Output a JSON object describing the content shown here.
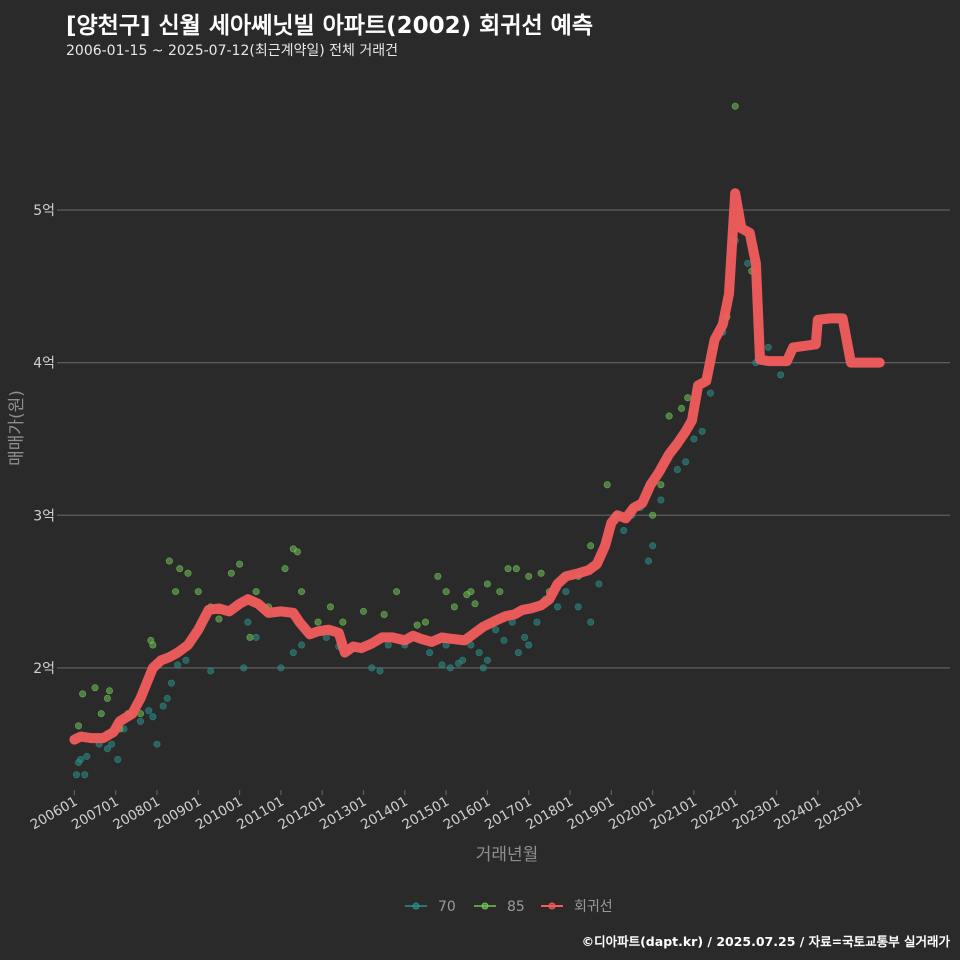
{
  "title": "[양천구] 신월 세아쎄닛빌 아파트(2002) 회귀선 예측",
  "subtitle": "2006-01-15 ~ 2025-07-12(최근계약일) 전체 거래건",
  "caption": "©디아파트(dapt.kr) / 2025.07.25 / 자료=국토교통부 실거래가",
  "colors": {
    "background": "#2b2a2b",
    "grid": "#5f5e60",
    "s70": "#2a8f8a",
    "s85": "#6fc356",
    "regression": "#f25c5c",
    "axis_text": "#d0d0d0",
    "axis_title": "#8f8f8f"
  },
  "chart_data": {
    "type": "scatter",
    "xlabel": "거래년월",
    "ylabel": "매매가(원)",
    "x_unit": "year",
    "xlim": [
      2005.7,
      2027.2
    ],
    "ylim": [
      1.2,
      5.95
    ],
    "x_ticks": [
      {
        "value": 2006.0,
        "label": "200601"
      },
      {
        "value": 2007.0,
        "label": "200701"
      },
      {
        "value": 2008.0,
        "label": "200801"
      },
      {
        "value": 2009.0,
        "label": "200901"
      },
      {
        "value": 2010.0,
        "label": "201001"
      },
      {
        "value": 2011.0,
        "label": "201101"
      },
      {
        "value": 2012.0,
        "label": "201201"
      },
      {
        "value": 2013.0,
        "label": "201301"
      },
      {
        "value": 2014.0,
        "label": "201401"
      },
      {
        "value": 2015.0,
        "label": "201501"
      },
      {
        "value": 2016.0,
        "label": "201601"
      },
      {
        "value": 2017.0,
        "label": "201701"
      },
      {
        "value": 2018.0,
        "label": "201801"
      },
      {
        "value": 2019.0,
        "label": "201901"
      },
      {
        "value": 2020.0,
        "label": "202001"
      },
      {
        "value": 2021.0,
        "label": "202101"
      },
      {
        "value": 2022.0,
        "label": "202201"
      },
      {
        "value": 2023.0,
        "label": "202301"
      },
      {
        "value": 2024.0,
        "label": "202401"
      },
      {
        "value": 2025.0,
        "label": "202501"
      }
    ],
    "y_ticks": [
      {
        "value": 2,
        "label": "2억"
      },
      {
        "value": 3,
        "label": "3억"
      },
      {
        "value": 4,
        "label": "4억"
      },
      {
        "value": 5,
        "label": "5억"
      }
    ],
    "legend": {
      "position": "bottom",
      "items": [
        {
          "key": "s70",
          "label": "70"
        },
        {
          "key": "s85",
          "label": "85"
        },
        {
          "key": "regression",
          "label": "회귀선"
        }
      ]
    },
    "series": [
      {
        "name": "70",
        "type": "scatter",
        "color_key": "s70",
        "points": [
          [
            2006.05,
            1.3
          ],
          [
            2006.1,
            1.38
          ],
          [
            2006.15,
            1.4
          ],
          [
            2006.25,
            1.3
          ],
          [
            2006.3,
            1.42
          ],
          [
            2006.6,
            1.5
          ],
          [
            2006.8,
            1.47
          ],
          [
            2006.9,
            1.5
          ],
          [
            2007.05,
            1.4
          ],
          [
            2007.2,
            1.6
          ],
          [
            2007.4,
            1.7
          ],
          [
            2007.6,
            1.65
          ],
          [
            2007.8,
            1.72
          ],
          [
            2007.9,
            1.68
          ],
          [
            2008.0,
            1.5
          ],
          [
            2008.15,
            1.75
          ],
          [
            2008.25,
            1.8
          ],
          [
            2008.35,
            1.9
          ],
          [
            2008.5,
            2.02
          ],
          [
            2008.7,
            2.05
          ],
          [
            2009.1,
            2.3
          ],
          [
            2009.3,
            1.98
          ],
          [
            2010.1,
            2.0
          ],
          [
            2010.2,
            2.3
          ],
          [
            2010.4,
            2.2
          ],
          [
            2011.0,
            2.0
          ],
          [
            2011.3,
            2.1
          ],
          [
            2011.5,
            2.15
          ],
          [
            2012.1,
            2.2
          ],
          [
            2012.4,
            2.14
          ],
          [
            2012.7,
            2.12
          ],
          [
            2013.2,
            2.0
          ],
          [
            2013.4,
            1.98
          ],
          [
            2013.6,
            2.15
          ],
          [
            2014.0,
            2.15
          ],
          [
            2014.3,
            2.2
          ],
          [
            2014.6,
            2.1
          ],
          [
            2014.9,
            2.02
          ],
          [
            2015.0,
            2.15
          ],
          [
            2015.1,
            2.0
          ],
          [
            2015.3,
            2.03
          ],
          [
            2015.4,
            2.05
          ],
          [
            2015.6,
            2.15
          ],
          [
            2015.8,
            2.1
          ],
          [
            2015.9,
            2.0
          ],
          [
            2016.0,
            2.05
          ],
          [
            2016.2,
            2.25
          ],
          [
            2016.4,
            2.18
          ],
          [
            2016.6,
            2.3
          ],
          [
            2016.75,
            2.1
          ],
          [
            2016.9,
            2.2
          ],
          [
            2017.0,
            2.15
          ],
          [
            2017.2,
            2.3
          ],
          [
            2017.4,
            2.45
          ],
          [
            2017.7,
            2.4
          ],
          [
            2017.9,
            2.5
          ],
          [
            2018.2,
            2.4
          ],
          [
            2018.5,
            2.3
          ],
          [
            2018.7,
            2.55
          ],
          [
            2019.3,
            2.9
          ],
          [
            2019.5,
            3.0
          ],
          [
            2019.7,
            3.05
          ],
          [
            2019.9,
            2.7
          ],
          [
            2020.0,
            2.8
          ],
          [
            2020.2,
            3.1
          ],
          [
            2020.6,
            3.3
          ],
          [
            2020.8,
            3.35
          ],
          [
            2021.0,
            3.5
          ],
          [
            2021.2,
            3.55
          ],
          [
            2021.4,
            3.8
          ],
          [
            2021.7,
            4.2
          ],
          [
            2022.0,
            4.8
          ],
          [
            2022.3,
            4.65
          ],
          [
            2022.5,
            4.0
          ],
          [
            2022.8,
            4.1
          ],
          [
            2023.1,
            3.92
          ]
        ]
      },
      {
        "name": "85",
        "type": "scatter",
        "color_key": "s85",
        "points": [
          [
            2006.1,
            1.62
          ],
          [
            2006.2,
            1.83
          ],
          [
            2006.5,
            1.87
          ],
          [
            2006.65,
            1.7
          ],
          [
            2006.8,
            1.8
          ],
          [
            2006.85,
            1.85
          ],
          [
            2007.1,
            1.6
          ],
          [
            2007.3,
            1.7
          ],
          [
            2007.6,
            1.7
          ],
          [
            2007.85,
            2.18
          ],
          [
            2007.9,
            2.15
          ],
          [
            2008.3,
            2.7
          ],
          [
            2008.45,
            2.5
          ],
          [
            2008.55,
            2.65
          ],
          [
            2008.75,
            2.62
          ],
          [
            2009.0,
            2.5
          ],
          [
            2009.3,
            2.4
          ],
          [
            2009.5,
            2.32
          ],
          [
            2009.8,
            2.62
          ],
          [
            2010.0,
            2.68
          ],
          [
            2010.25,
            2.2
          ],
          [
            2010.4,
            2.5
          ],
          [
            2010.7,
            2.4
          ],
          [
            2011.1,
            2.65
          ],
          [
            2011.3,
            2.78
          ],
          [
            2011.4,
            2.76
          ],
          [
            2011.5,
            2.5
          ],
          [
            2011.9,
            2.3
          ],
          [
            2012.2,
            2.4
          ],
          [
            2012.5,
            2.3
          ],
          [
            2013.0,
            2.37
          ],
          [
            2013.5,
            2.35
          ],
          [
            2013.8,
            2.5
          ],
          [
            2014.3,
            2.28
          ],
          [
            2014.5,
            2.3
          ],
          [
            2014.8,
            2.6
          ],
          [
            2015.0,
            2.5
          ],
          [
            2015.2,
            2.4
          ],
          [
            2015.5,
            2.48
          ],
          [
            2015.6,
            2.5
          ],
          [
            2015.7,
            2.42
          ],
          [
            2016.0,
            2.55
          ],
          [
            2016.3,
            2.5
          ],
          [
            2016.5,
            2.65
          ],
          [
            2016.7,
            2.65
          ],
          [
            2017.0,
            2.6
          ],
          [
            2017.3,
            2.62
          ],
          [
            2017.5,
            2.5
          ],
          [
            2018.2,
            2.6
          ],
          [
            2018.5,
            2.8
          ],
          [
            2018.9,
            3.2
          ],
          [
            2019.1,
            3.0
          ],
          [
            2019.5,
            3.05
          ],
          [
            2020.0,
            3.0
          ],
          [
            2020.2,
            3.2
          ],
          [
            2020.4,
            3.65
          ],
          [
            2020.7,
            3.7
          ],
          [
            2020.85,
            3.77
          ],
          [
            2021.3,
            3.9
          ],
          [
            2021.5,
            4.1
          ],
          [
            2021.8,
            4.3
          ],
          [
            2022.0,
            5.68
          ],
          [
            2022.4,
            4.6
          ]
        ]
      },
      {
        "name": "회귀선",
        "type": "line",
        "color_key": "regression",
        "points": [
          [
            2006.0,
            1.53
          ],
          [
            2006.15,
            1.55
          ],
          [
            2006.4,
            1.54
          ],
          [
            2006.7,
            1.54
          ],
          [
            2006.95,
            1.58
          ],
          [
            2007.1,
            1.65
          ],
          [
            2007.4,
            1.7
          ],
          [
            2007.6,
            1.8
          ],
          [
            2007.9,
            2.0
          ],
          [
            2008.1,
            2.05
          ],
          [
            2008.3,
            2.07
          ],
          [
            2008.5,
            2.1
          ],
          [
            2008.75,
            2.15
          ],
          [
            2009.0,
            2.25
          ],
          [
            2009.25,
            2.38
          ],
          [
            2009.5,
            2.39
          ],
          [
            2009.75,
            2.37
          ],
          [
            2010.0,
            2.42
          ],
          [
            2010.2,
            2.45
          ],
          [
            2010.45,
            2.42
          ],
          [
            2010.7,
            2.36
          ],
          [
            2011.0,
            2.37
          ],
          [
            2011.3,
            2.36
          ],
          [
            2011.45,
            2.3
          ],
          [
            2011.7,
            2.22
          ],
          [
            2011.9,
            2.24
          ],
          [
            2012.15,
            2.25
          ],
          [
            2012.4,
            2.23
          ],
          [
            2012.55,
            2.1
          ],
          [
            2012.75,
            2.14
          ],
          [
            2012.95,
            2.13
          ],
          [
            2013.2,
            2.16
          ],
          [
            2013.45,
            2.2
          ],
          [
            2013.7,
            2.2
          ],
          [
            2014.0,
            2.18
          ],
          [
            2014.2,
            2.21
          ],
          [
            2014.4,
            2.19
          ],
          [
            2014.65,
            2.17
          ],
          [
            2014.9,
            2.2
          ],
          [
            2015.15,
            2.19
          ],
          [
            2015.45,
            2.18
          ],
          [
            2015.65,
            2.22
          ],
          [
            2015.9,
            2.27
          ],
          [
            2016.2,
            2.31
          ],
          [
            2016.45,
            2.34
          ],
          [
            2016.65,
            2.35
          ],
          [
            2016.85,
            2.38
          ],
          [
            2017.05,
            2.39
          ],
          [
            2017.3,
            2.41
          ],
          [
            2017.5,
            2.45
          ],
          [
            2017.7,
            2.55
          ],
          [
            2017.9,
            2.6
          ],
          [
            2018.2,
            2.62
          ],
          [
            2018.45,
            2.64
          ],
          [
            2018.65,
            2.68
          ],
          [
            2018.85,
            2.8
          ],
          [
            2019.0,
            2.95
          ],
          [
            2019.15,
            3.0
          ],
          [
            2019.35,
            2.98
          ],
          [
            2019.55,
            3.05
          ],
          [
            2019.75,
            3.08
          ],
          [
            2019.95,
            3.2
          ],
          [
            2020.15,
            3.28
          ],
          [
            2020.4,
            3.4
          ],
          [
            2020.6,
            3.47
          ],
          [
            2020.8,
            3.55
          ],
          [
            2020.95,
            3.62
          ],
          [
            2021.1,
            3.85
          ],
          [
            2021.3,
            3.88
          ],
          [
            2021.5,
            4.15
          ],
          [
            2021.7,
            4.25
          ],
          [
            2021.85,
            4.45
          ],
          [
            2022.0,
            5.11
          ],
          [
            2022.15,
            4.88
          ],
          [
            2022.35,
            4.85
          ],
          [
            2022.5,
            4.65
          ],
          [
            2022.6,
            4.02
          ],
          [
            2022.8,
            4.01
          ],
          [
            2023.05,
            4.01
          ],
          [
            2023.25,
            4.01
          ],
          [
            2023.4,
            4.1
          ],
          [
            2023.7,
            4.11
          ],
          [
            2023.95,
            4.12
          ],
          [
            2024.0,
            4.28
          ],
          [
            2024.3,
            4.29
          ],
          [
            2024.6,
            4.29
          ],
          [
            2024.8,
            4.0
          ],
          [
            2025.1,
            4.0
          ],
          [
            2025.5,
            4.0
          ]
        ]
      }
    ]
  }
}
